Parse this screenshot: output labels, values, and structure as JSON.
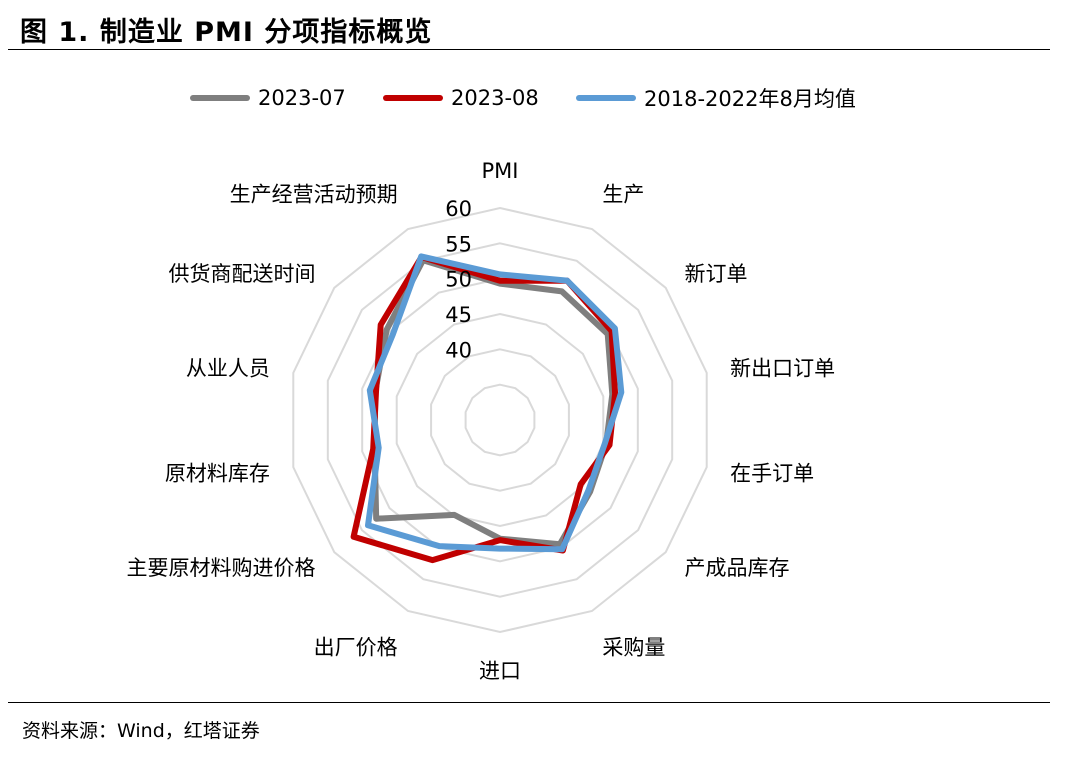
{
  "header": {
    "title": "图 1. 制造业 PMI 分项指标概览"
  },
  "footer": {
    "source": "资料来源：Wind，红塔证券"
  },
  "chart_data": {
    "type": "radar",
    "title": "图 1. 制造业 PMI 分项指标概览",
    "categories": [
      "PMI",
      "生产",
      "新订单",
      "新出口订单",
      "在手订单",
      "产成品库存",
      "采购量",
      "进口",
      "出厂价格",
      "主要原材料购进价格",
      "原材料库存",
      "从业人员",
      "供货商配送时间",
      "生产经营活动预期"
    ],
    "ticks": [
      "40",
      "45",
      "50",
      "55",
      "60"
    ],
    "rlim": [
      30,
      60
    ],
    "legend_position": "top",
    "series": [
      {
        "name": "2023-07",
        "color": "#7f7f7f",
        "values": [
          49.3,
          50.2,
          49.5,
          46.3,
          45.4,
          46.3,
          49.5,
          46.8,
          44.9,
          52.4,
          48.2,
          48.1,
          50.5,
          55.1
        ]
      },
      {
        "name": "2023-08",
        "color": "#c00000",
        "values": [
          49.7,
          51.9,
          50.2,
          46.7,
          45.9,
          44.6,
          50.5,
          47.0,
          52.0,
          56.5,
          48.4,
          48.0,
          51.6,
          55.6
        ]
      },
      {
        "name": "2018-2022年8月均值",
        "color": "#5b9bd5",
        "values": [
          50.6,
          51.9,
          50.8,
          47.6,
          45.2,
          46.0,
          50.3,
          48.2,
          49.8,
          53.9,
          47.6,
          48.9,
          49.4,
          55.7
        ]
      }
    ]
  }
}
